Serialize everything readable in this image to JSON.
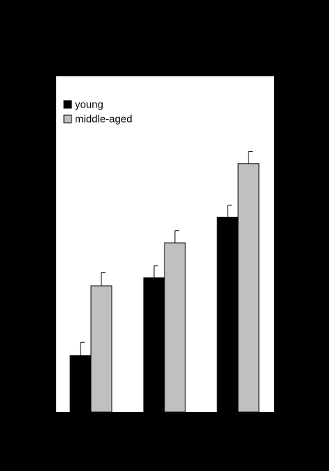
{
  "chart_data": {
    "type": "bar",
    "categories": [
      "",
      "",
      ""
    ],
    "series": [
      {
        "name": "young",
        "values": [
          42,
          100,
          145
        ],
        "errors": [
          10,
          9,
          9
        ],
        "color": "#000000"
      },
      {
        "name": "middle-aged",
        "values": [
          94,
          126,
          185
        ],
        "errors": [
          10,
          9,
          9
        ],
        "color": "#c0c0c0"
      }
    ],
    "title": "",
    "xlabel": "",
    "ylabel": "",
    "ylim": [
      0,
      250
    ],
    "grid": false,
    "legend": "top-left",
    "background": "#000000",
    "plot_background": "#ffffff"
  }
}
